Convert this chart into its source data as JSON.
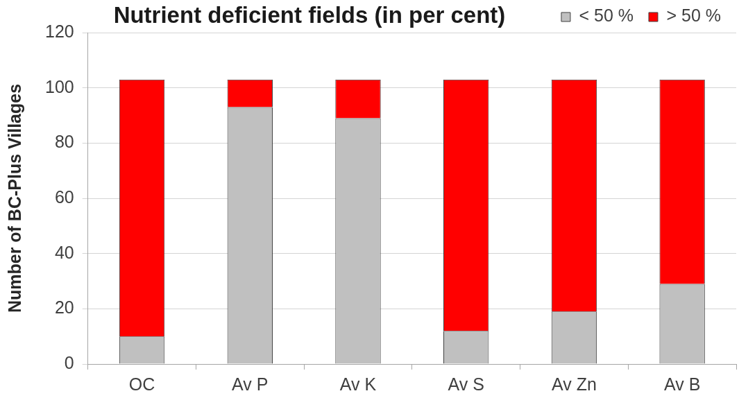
{
  "chart_data": {
    "type": "bar",
    "title": "Nutrient deficient fields (in per cent)",
    "ylabel": "Number of BC-Plus Villages",
    "categories": [
      "OC",
      "Av P",
      "Av K",
      "Av S",
      "Av Zn",
      "Av B"
    ],
    "series": [
      {
        "name": "< 50 %",
        "color": "#c0c0c0",
        "values": [
          10,
          93,
          89,
          12,
          19,
          29
        ]
      },
      {
        "name": "> 50 %",
        "color": "#ff0000",
        "values": [
          93,
          10,
          14,
          91,
          84,
          74
        ]
      }
    ],
    "stacked": true,
    "ylim": [
      0,
      120
    ],
    "yticks": [
      0,
      20,
      40,
      60,
      80,
      100,
      120
    ],
    "grid": "y",
    "legend": "top right"
  }
}
